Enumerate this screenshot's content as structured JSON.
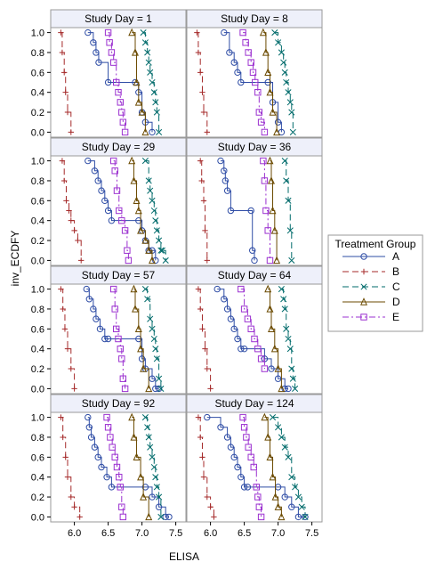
{
  "chart_data": {
    "type": "step",
    "ylabel": "inv_ECDFY",
    "xlabel": "ELISA",
    "xlim": [
      5.65,
      7.65
    ],
    "ylim": [
      -0.05,
      1.05
    ],
    "xticks": [
      "6.0",
      "6.5",
      "7.0",
      "7.5"
    ],
    "xtick_values": [
      6.0,
      6.5,
      7.0,
      7.5
    ],
    "yticks": [
      "0.0",
      "0.2",
      "0.4",
      "0.6",
      "0.8",
      "1.0"
    ],
    "ytick_values": [
      0.0,
      0.2,
      0.4,
      0.6,
      0.8,
      1.0
    ],
    "legend": {
      "title": "Treatment Group",
      "position": "right",
      "entries": [
        {
          "label": "A",
          "color": "#2e4ca5",
          "marker": "circle",
          "dash": "solid"
        },
        {
          "label": "B",
          "color": "#a52a2a",
          "marker": "plus",
          "dash": "dash"
        },
        {
          "label": "C",
          "color": "#006b6b",
          "marker": "x",
          "dash": "dash"
        },
        {
          "label": "D",
          "color": "#6b4a00",
          "marker": "triangle",
          "dash": "solid"
        },
        {
          "label": "E",
          "color": "#9b30d0",
          "marker": "square",
          "dash": "dashdot"
        }
      ]
    },
    "panels": [
      {
        "title": "Study Day = 1",
        "series": [
          {
            "name": "A",
            "x": [
              6.2,
              6.28,
              6.32,
              6.36,
              6.5,
              6.9,
              6.95,
              7.0,
              7.05,
              7.15
            ],
            "y": [
              1.0,
              0.9,
              0.8,
              0.7,
              0.5,
              0.5,
              0.4,
              0.2,
              0.1,
              0.0
            ]
          },
          {
            "name": "B",
            "x": [
              5.8,
              5.82,
              5.85,
              5.87,
              5.9,
              5.95
            ],
            "y": [
              1.0,
              0.8,
              0.6,
              0.4,
              0.2,
              0.0
            ]
          },
          {
            "name": "C",
            "x": [
              7.02,
              7.05,
              7.08,
              7.1,
              7.12,
              7.15,
              7.18,
              7.2,
              7.22,
              7.25
            ],
            "y": [
              1.0,
              0.9,
              0.8,
              0.7,
              0.6,
              0.5,
              0.4,
              0.3,
              0.2,
              0.0
            ]
          },
          {
            "name": "D",
            "x": [
              6.85,
              6.9,
              6.92,
              6.95,
              7.0,
              7.05
            ],
            "y": [
              1.0,
              0.8,
              0.5,
              0.3,
              0.2,
              0.0
            ]
          },
          {
            "name": "E",
            "x": [
              6.5,
              6.52,
              6.55,
              6.58,
              6.62,
              6.65,
              6.68,
              6.7,
              6.72,
              6.75
            ],
            "y": [
              1.0,
              0.9,
              0.8,
              0.7,
              0.5,
              0.4,
              0.3,
              0.2,
              0.1,
              0.0
            ]
          }
        ]
      },
      {
        "title": "Study Day = 8",
        "series": [
          {
            "name": "A",
            "x": [
              6.2,
              6.28,
              6.35,
              6.4,
              6.45,
              6.85,
              6.92,
              7.0,
              7.05
            ],
            "y": [
              1.0,
              0.8,
              0.7,
              0.6,
              0.5,
              0.5,
              0.3,
              0.1,
              0.0
            ]
          },
          {
            "name": "B",
            "x": [
              5.8,
              5.82,
              5.85,
              5.88,
              5.9,
              5.95
            ],
            "y": [
              1.0,
              0.8,
              0.6,
              0.4,
              0.2,
              0.0
            ]
          },
          {
            "name": "C",
            "x": [
              6.95,
              7.0,
              7.05,
              7.08,
              7.1,
              7.12,
              7.15,
              7.18,
              7.2,
              7.22
            ],
            "y": [
              1.0,
              0.9,
              0.8,
              0.7,
              0.6,
              0.5,
              0.4,
              0.3,
              0.2,
              0.0
            ]
          },
          {
            "name": "D",
            "x": [
              6.78,
              6.82,
              6.85,
              6.88,
              6.92,
              6.98
            ],
            "y": [
              1.0,
              0.8,
              0.6,
              0.4,
              0.2,
              0.0
            ]
          },
          {
            "name": "E",
            "x": [
              6.48,
              6.52,
              6.56,
              6.6,
              6.63,
              6.66,
              6.7,
              6.72,
              6.75,
              6.8
            ],
            "y": [
              1.0,
              0.9,
              0.8,
              0.7,
              0.6,
              0.5,
              0.4,
              0.2,
              0.1,
              0.0
            ]
          }
        ]
      },
      {
        "title": "Study Day = 29",
        "series": [
          {
            "name": "A",
            "x": [
              6.2,
              6.3,
              6.35,
              6.4,
              6.45,
              6.5,
              6.55,
              6.95,
              7.0,
              7.05,
              7.1,
              7.15,
              7.2
            ],
            "y": [
              1.0,
              0.9,
              0.8,
              0.7,
              0.6,
              0.5,
              0.4,
              0.4,
              0.3,
              0.2,
              0.1,
              0.1,
              0.0
            ]
          },
          {
            "name": "B",
            "x": [
              5.82,
              5.85,
              5.88,
              5.92,
              5.95,
              6.0,
              6.05,
              6.1
            ],
            "y": [
              1.0,
              0.8,
              0.6,
              0.5,
              0.4,
              0.3,
              0.2,
              0.0
            ]
          },
          {
            "name": "C",
            "x": [
              7.05,
              7.1,
              7.12,
              7.15,
              7.18,
              7.2,
              7.22,
              7.25,
              7.28,
              7.3,
              7.35
            ],
            "y": [
              1.0,
              0.8,
              0.7,
              0.6,
              0.5,
              0.4,
              0.3,
              0.2,
              0.1,
              0.1,
              0.0
            ]
          },
          {
            "name": "D",
            "x": [
              6.85,
              6.88,
              6.92,
              6.95,
              6.98,
              7.05,
              7.1,
              7.15
            ],
            "y": [
              1.0,
              0.8,
              0.6,
              0.5,
              0.3,
              0.2,
              0.1,
              0.0
            ]
          },
          {
            "name": "E",
            "x": [
              6.58,
              6.6,
              6.63,
              6.66,
              6.7,
              6.75,
              6.78,
              6.8
            ],
            "y": [
              1.0,
              0.9,
              0.7,
              0.5,
              0.4,
              0.3,
              0.1,
              0.0
            ]
          }
        ]
      },
      {
        "title": "Study Day = 36",
        "series": [
          {
            "name": "A",
            "x": [
              6.15,
              6.2,
              6.22,
              6.25,
              6.3,
              6.6,
              6.62,
              6.65
            ],
            "y": [
              1.0,
              0.9,
              0.8,
              0.7,
              0.5,
              0.5,
              0.1,
              0.0
            ]
          },
          {
            "name": "B",
            "x": [
              5.85,
              5.87,
              5.9,
              5.92,
              5.95
            ],
            "y": [
              1.0,
              0.8,
              0.6,
              0.3,
              0.0
            ]
          },
          {
            "name": "C",
            "x": [
              7.1,
              7.12,
              7.15,
              7.18,
              7.2
            ],
            "y": [
              1.0,
              0.8,
              0.6,
              0.3,
              0.0
            ]
          },
          {
            "name": "D",
            "x": [
              6.88,
              6.9,
              6.92,
              6.95,
              6.98
            ],
            "y": [
              1.0,
              0.8,
              0.5,
              0.3,
              0.0
            ]
          },
          {
            "name": "E",
            "x": [
              6.78,
              6.8,
              6.82,
              6.85,
              6.88
            ],
            "y": [
              1.0,
              0.8,
              0.5,
              0.3,
              0.0
            ]
          }
        ]
      },
      {
        "title": "Study Day = 57",
        "series": [
          {
            "name": "A",
            "x": [
              6.18,
              6.22,
              6.28,
              6.32,
              6.38,
              6.45,
              6.5,
              6.95,
              7.0,
              7.05,
              7.15,
              7.2,
              7.25
            ],
            "y": [
              1.0,
              0.9,
              0.8,
              0.7,
              0.6,
              0.5,
              0.5,
              0.5,
              0.3,
              0.2,
              0.1,
              0.0,
              0.0
            ]
          },
          {
            "name": "B",
            "x": [
              5.8,
              5.83,
              5.86,
              5.9,
              5.95,
              6.0
            ],
            "y": [
              1.0,
              0.8,
              0.6,
              0.4,
              0.2,
              0.0
            ]
          },
          {
            "name": "C",
            "x": [
              7.05,
              7.08,
              7.12,
              7.15,
              7.18,
              7.2,
              7.22,
              7.25,
              7.28
            ],
            "y": [
              1.0,
              0.9,
              0.7,
              0.6,
              0.5,
              0.4,
              0.3,
              0.1,
              0.0
            ]
          },
          {
            "name": "D",
            "x": [
              6.88,
              6.9,
              6.95,
              6.98,
              7.02,
              7.1
            ],
            "y": [
              1.0,
              0.8,
              0.6,
              0.4,
              0.2,
              0.0
            ]
          },
          {
            "name": "E",
            "x": [
              6.58,
              6.6,
              6.62,
              6.65,
              6.68,
              6.7,
              6.72,
              6.75
            ],
            "y": [
              1.0,
              0.8,
              0.6,
              0.5,
              0.4,
              0.3,
              0.1,
              0.0
            ]
          }
        ]
      },
      {
        "title": "Study Day = 64",
        "series": [
          {
            "name": "A",
            "x": [
              6.1,
              6.2,
              6.25,
              6.3,
              6.35,
              6.4,
              6.45,
              6.5,
              6.8,
              6.9,
              7.0,
              7.1,
              7.15
            ],
            "y": [
              1.0,
              0.9,
              0.8,
              0.7,
              0.6,
              0.5,
              0.4,
              0.4,
              0.3,
              0.2,
              0.1,
              0.0,
              0.0
            ]
          },
          {
            "name": "B",
            "x": [
              5.82,
              5.85,
              5.88,
              5.92,
              5.95,
              6.0
            ],
            "y": [
              1.0,
              0.8,
              0.6,
              0.4,
              0.2,
              0.0
            ]
          },
          {
            "name": "C",
            "x": [
              7.05,
              7.08,
              7.1,
              7.12,
              7.15,
              7.18,
              7.2,
              7.22,
              7.25
            ],
            "y": [
              1.0,
              0.9,
              0.8,
              0.6,
              0.5,
              0.4,
              0.2,
              0.1,
              0.0
            ]
          },
          {
            "name": "D",
            "x": [
              6.85,
              6.88,
              6.9,
              6.95,
              7.0,
              7.05
            ],
            "y": [
              1.0,
              0.8,
              0.6,
              0.4,
              0.2,
              0.0
            ]
          },
          {
            "name": "E",
            "x": [
              6.45,
              6.5,
              6.55,
              6.6,
              6.65,
              6.7,
              6.75,
              6.8
            ],
            "y": [
              1.0,
              0.8,
              0.7,
              0.6,
              0.5,
              0.4,
              0.3,
              0.2
            ]
          }
        ]
      },
      {
        "title": "Study Day = 92",
        "series": [
          {
            "name": "A",
            "x": [
              6.2,
              6.22,
              6.25,
              6.3,
              6.35,
              6.4,
              6.48,
              6.55,
              7.05,
              7.15,
              7.25,
              7.35,
              7.4
            ],
            "y": [
              1.0,
              0.9,
              0.8,
              0.7,
              0.6,
              0.5,
              0.4,
              0.3,
              0.3,
              0.2,
              0.1,
              0.0,
              0.0
            ]
          },
          {
            "name": "B",
            "x": [
              5.8,
              5.83,
              5.87,
              5.9,
              5.95,
              6.0,
              6.08
            ],
            "y": [
              1.0,
              0.8,
              0.6,
              0.4,
              0.2,
              0.1,
              0.0
            ]
          },
          {
            "name": "C",
            "x": [
              7.05,
              7.08,
              7.1,
              7.12,
              7.15,
              7.18,
              7.2,
              7.22,
              7.25,
              7.28
            ],
            "y": [
              1.0,
              0.9,
              0.8,
              0.7,
              0.6,
              0.5,
              0.4,
              0.3,
              0.2,
              0.0
            ]
          },
          {
            "name": "D",
            "x": [
              6.85,
              6.88,
              6.92,
              6.98,
              7.02,
              7.1
            ],
            "y": [
              1.0,
              0.8,
              0.6,
              0.4,
              0.2,
              0.0
            ]
          },
          {
            "name": "E",
            "x": [
              6.48,
              6.5,
              6.53,
              6.56,
              6.6,
              6.63,
              6.66,
              6.68,
              6.7,
              6.72
            ],
            "y": [
              1.0,
              0.9,
              0.8,
              0.7,
              0.6,
              0.5,
              0.4,
              0.3,
              0.1,
              0.0
            ]
          }
        ]
      },
      {
        "title": "Study Day = 124",
        "series": [
          {
            "name": "A",
            "x": [
              5.95,
              6.15,
              6.25,
              6.3,
              6.35,
              6.4,
              6.45,
              6.5,
              6.55,
              7.0,
              7.1,
              7.2,
              7.3,
              7.4
            ],
            "y": [
              1.0,
              0.9,
              0.8,
              0.7,
              0.6,
              0.5,
              0.4,
              0.3,
              0.3,
              0.3,
              0.2,
              0.1,
              0.0,
              0.0
            ]
          },
          {
            "name": "B",
            "x": [
              5.82,
              5.85,
              5.88,
              5.9,
              5.95,
              6.0,
              6.05
            ],
            "y": [
              1.0,
              0.8,
              0.6,
              0.4,
              0.2,
              0.1,
              0.0
            ]
          },
          {
            "name": "C",
            "x": [
              6.92,
              7.0,
              7.05,
              7.1,
              7.15,
              7.2,
              7.25,
              7.3,
              7.35,
              7.4
            ],
            "y": [
              1.0,
              0.9,
              0.8,
              0.7,
              0.6,
              0.4,
              0.3,
              0.2,
              0.1,
              0.0
            ]
          },
          {
            "name": "D",
            "x": [
              6.8,
              6.85,
              6.88,
              6.92,
              6.96,
              7.0,
              7.05
            ],
            "y": [
              1.0,
              0.8,
              0.6,
              0.4,
              0.2,
              0.1,
              0.0
            ]
          },
          {
            "name": "E",
            "x": [
              6.48,
              6.5,
              6.53,
              6.56,
              6.6,
              6.64,
              6.68,
              6.7,
              6.72,
              6.75
            ],
            "y": [
              1.0,
              0.9,
              0.8,
              0.7,
              0.6,
              0.5,
              0.3,
              0.2,
              0.1,
              0.0
            ]
          }
        ]
      }
    ]
  }
}
